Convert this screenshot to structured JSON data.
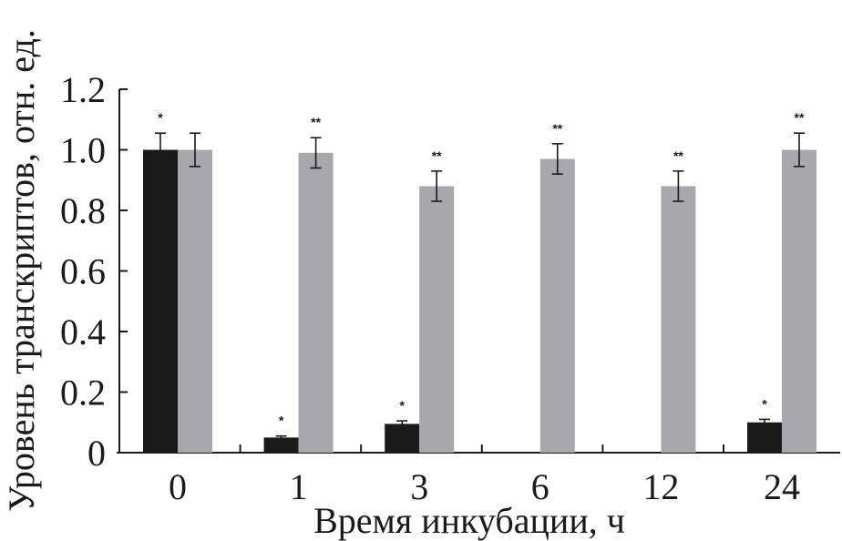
{
  "chart_data": {
    "type": "bar",
    "xlabel": "Время инкубации, ч",
    "ylabel": "Уровень транскриптов, отн. ед.",
    "categories": [
      "0",
      "1",
      "3",
      "6",
      "12",
      "24"
    ],
    "ylim": [
      0,
      1.2
    ],
    "yticks": [
      "0",
      "0.2",
      "0.4",
      "0.6",
      "0.8",
      "1.0",
      "1.2"
    ],
    "ytick_values": [
      0,
      0.2,
      0.4,
      0.6,
      0.8,
      1.0,
      1.2
    ],
    "grid": false,
    "legend": "none",
    "series": [
      {
        "color": "#1a1a1a",
        "values": [
          1.0,
          0.05,
          0.095,
          null,
          null,
          0.1
        ],
        "errors": [
          0.055,
          0.005,
          0.01,
          null,
          null,
          0.01
        ],
        "marks": [
          "*",
          "*",
          "*",
          "",
          "",
          "*"
        ]
      },
      {
        "color": "#a6a8ab",
        "values": [
          1.0,
          0.99,
          0.88,
          0.97,
          0.88,
          1.0
        ],
        "errors": [
          0.055,
          0.05,
          0.05,
          0.05,
          0.05,
          0.055
        ],
        "marks": [
          "",
          "**",
          "**",
          "**",
          "**",
          "**"
        ]
      }
    ]
  }
}
